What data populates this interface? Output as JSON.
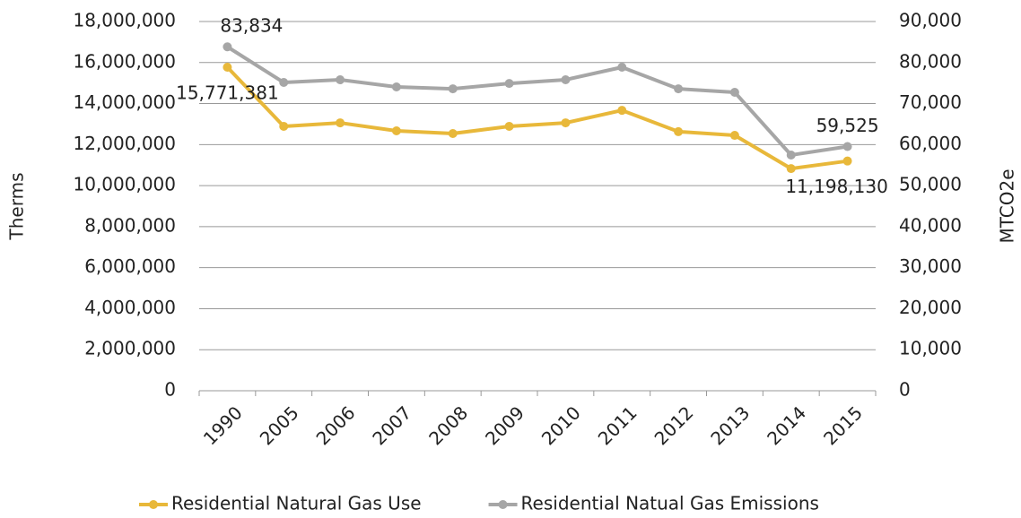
{
  "chart_data": {
    "type": "line",
    "categories": [
      "1990",
      "2005",
      "2006",
      "2007",
      "2008",
      "2009",
      "2010",
      "2011",
      "2012",
      "2013",
      "2014",
      "2015"
    ],
    "ylabel": "Therms",
    "y2label": "MTCO2e",
    "ylim": [
      0,
      18000000
    ],
    "yticks": [
      0,
      {
        "value": 2000000,
        "label": "2,000,000"
      },
      {
        "value": 4000000,
        "label": "4,000,000"
      },
      {
        "value": 6000000,
        "label": "6,000,000"
      },
      {
        "value": 8000000,
        "label": "8,000,000"
      },
      {
        "value": 10000000,
        "label": "10,000,000"
      },
      {
        "value": 12000000,
        "label": "12,000,000"
      },
      {
        "value": 14000000,
        "label": "14,000,000"
      },
      {
        "value": 16000000,
        "label": "16,000,000"
      },
      {
        "value": 18000000,
        "label": "18,000,000"
      }
    ],
    "y2lim": [
      0,
      90000
    ],
    "y2ticks": [
      0,
      {
        "value": 10000,
        "label": "10,000"
      },
      {
        "value": 20000,
        "label": "20,000"
      },
      {
        "value": 30000,
        "label": "30,000"
      },
      {
        "value": 40000,
        "label": "40,000"
      },
      {
        "value": 50000,
        "label": "50,000"
      },
      {
        "value": 60000,
        "label": "60,000"
      },
      {
        "value": 70000,
        "label": "70,000"
      },
      {
        "value": 80000,
        "label": "80,000"
      },
      {
        "value": 90000,
        "label": "90,000"
      }
    ],
    "grid": true,
    "legend": "bottom",
    "series": [
      {
        "name": "Residential Natural Gas Use",
        "color": "#e8b83a",
        "values": [
          15771381,
          12890000,
          13060000,
          12670000,
          12540000,
          12890000,
          13060000,
          13670000,
          12630000,
          12450000,
          10830000,
          11198130
        ],
        "value_labels": [
          "15,771,381",
          null,
          null,
          null,
          null,
          null,
          null,
          null,
          null,
          null,
          null,
          "11,198,130"
        ]
      },
      {
        "name": "Residential Natual Gas Emissions",
        "color": "#a6a6a6",
        "axis": "y2",
        "values": [
          83834,
          75140,
          75800,
          74050,
          73600,
          74900,
          75800,
          78860,
          73600,
          72740,
          57450,
          59525
        ],
        "value_labels": [
          "83,834",
          null,
          null,
          null,
          null,
          null,
          null,
          null,
          null,
          null,
          null,
          "59,525"
        ]
      }
    ]
  }
}
